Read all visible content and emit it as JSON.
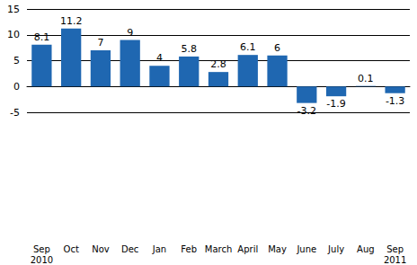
{
  "chart_data": {
    "type": "bar",
    "categories": [
      "Sep\n2010",
      "Oct",
      "Nov",
      "Dec",
      "Jan",
      "Feb",
      "March",
      "April",
      "May",
      "June",
      "July",
      "Aug",
      "Sep\n2011"
    ],
    "values": [
      8.1,
      11.2,
      7,
      9,
      4,
      5.8,
      2.8,
      6.1,
      6,
      -3.2,
      -1.9,
      0.1,
      -1.3
    ],
    "color": "#1f67b1",
    "ylim": [
      -5,
      15
    ],
    "yticks": [
      -5,
      0,
      5,
      10,
      15
    ],
    "grid": true,
    "data_labels": true
  }
}
